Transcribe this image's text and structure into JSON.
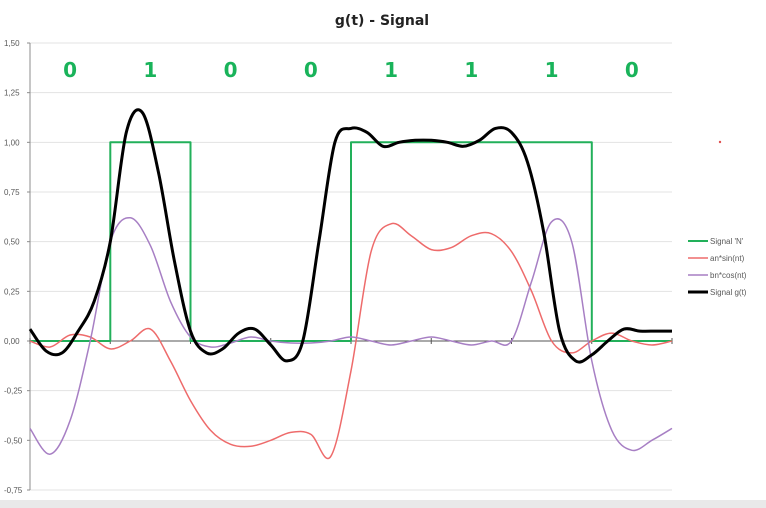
{
  "chart_data": {
    "type": "line",
    "title": "g(t) - Signal",
    "xlabel": "",
    "ylabel": "",
    "ylim": [
      -0.75,
      1.5
    ],
    "xlim": [
      0,
      8
    ],
    "y_ticks": [
      "1,50",
      "1,25",
      "1,00",
      "0,75",
      "0,50",
      "0,25",
      "0,00",
      "-0,25",
      "-0,50",
      "-0,75"
    ],
    "y_tick_values": [
      1.5,
      1.25,
      1.0,
      0.75,
      0.5,
      0.25,
      0.0,
      -0.25,
      -0.5,
      -0.75
    ],
    "bits": [
      "0",
      "1",
      "0",
      "0",
      "1",
      "1",
      "1",
      "0"
    ],
    "grid": true,
    "legend_position": "right",
    "series": [
      {
        "name": "Signal 'N'",
        "color": "#22b05a",
        "x": [
          0,
          1,
          1,
          2,
          2,
          4,
          4,
          7,
          7,
          8
        ],
        "y": [
          0,
          0,
          1,
          1,
          0,
          0,
          1,
          1,
          0,
          0
        ]
      },
      {
        "name": "an*sin(nt)",
        "color": "#ee6b6b",
        "x": [
          0,
          0.25,
          0.5,
          0.75,
          1.0,
          1.25,
          1.5,
          1.75,
          2.0,
          2.25,
          2.5,
          2.75,
          3.0,
          3.25,
          3.5,
          3.75,
          4.0,
          4.25,
          4.5,
          4.75,
          5.0,
          5.25,
          5.5,
          5.75,
          6.0,
          6.25,
          6.5,
          6.75,
          7.0,
          7.25,
          7.5,
          7.75,
          8.0
        ],
        "y": [
          0.0,
          -0.03,
          0.03,
          0.02,
          -0.04,
          0.0,
          0.06,
          -0.1,
          -0.3,
          -0.45,
          -0.52,
          -0.53,
          -0.5,
          -0.46,
          -0.47,
          -0.58,
          -0.15,
          0.45,
          0.59,
          0.53,
          0.46,
          0.47,
          0.53,
          0.54,
          0.45,
          0.25,
          0.0,
          -0.06,
          0.0,
          0.04,
          0.0,
          -0.02,
          0.0
        ]
      },
      {
        "name": "bn*cos(nt)",
        "color": "#a77fc4",
        "x": [
          0,
          0.25,
          0.5,
          0.75,
          1.0,
          1.25,
          1.5,
          1.75,
          2.0,
          2.25,
          2.5,
          2.75,
          3.0,
          3.25,
          3.5,
          3.75,
          4.0,
          4.25,
          4.5,
          4.75,
          5.0,
          5.25,
          5.5,
          5.75,
          6.0,
          6.25,
          6.5,
          6.75,
          7.0,
          7.25,
          7.5,
          7.75,
          8.0
        ],
        "y": [
          -0.44,
          -0.57,
          -0.4,
          0.0,
          0.5,
          0.62,
          0.48,
          0.2,
          0.02,
          -0.03,
          -0.01,
          0.02,
          0.0,
          -0.01,
          -0.01,
          0.0,
          0.02,
          0.0,
          -0.02,
          0.0,
          0.02,
          0.0,
          -0.02,
          0.0,
          0.0,
          0.3,
          0.6,
          0.5,
          -0.1,
          -0.45,
          -0.55,
          -0.5,
          -0.44
        ]
      },
      {
        "name": "Signal g(t)",
        "color": "#000000",
        "x": [
          0,
          0.2,
          0.4,
          0.6,
          0.8,
          1.0,
          1.2,
          1.4,
          1.6,
          1.8,
          2.0,
          2.2,
          2.4,
          2.6,
          2.8,
          3.0,
          3.2,
          3.4,
          3.6,
          3.8,
          4.0,
          4.2,
          4.4,
          4.6,
          4.8,
          5.0,
          5.2,
          5.4,
          5.6,
          5.8,
          6.0,
          6.2,
          6.4,
          6.6,
          6.8,
          7.0,
          7.2,
          7.4,
          7.6,
          7.8,
          8.0
        ],
        "y": [
          0.06,
          -0.05,
          -0.06,
          0.05,
          0.2,
          0.5,
          1.05,
          1.15,
          0.85,
          0.4,
          0.05,
          -0.06,
          -0.04,
          0.04,
          0.06,
          -0.02,
          -0.1,
          0.0,
          0.5,
          1.0,
          1.07,
          1.05,
          0.98,
          1.0,
          1.01,
          1.01,
          1.0,
          0.98,
          1.01,
          1.07,
          1.05,
          0.9,
          0.55,
          0.05,
          -0.1,
          -0.07,
          0.0,
          0.06,
          0.05,
          0.05,
          0.05
        ]
      }
    ]
  }
}
